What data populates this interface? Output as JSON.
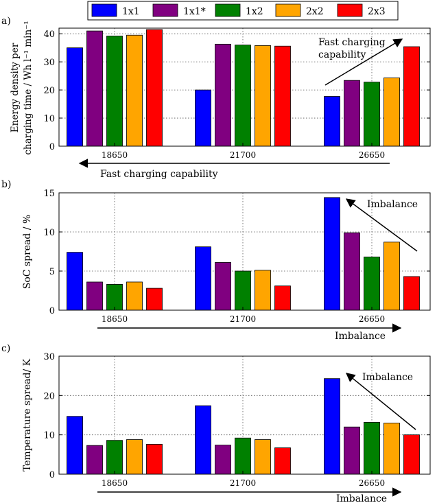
{
  "legend": {
    "entries": [
      {
        "name": "1x1",
        "color": "#0000ff"
      },
      {
        "name": "1x1*",
        "color": "#800080"
      },
      {
        "name": "1x2",
        "color": "#008000"
      },
      {
        "name": "2x2",
        "color": "#ffa500"
      },
      {
        "name": "2x3",
        "color": "#ff0000"
      }
    ],
    "placement": "top-center"
  },
  "chart_data": [
    {
      "type": "bar",
      "panel_label": "a)",
      "ylabel_line1": "Energy density per",
      "ylabel_line2": "charging time / Wh l⁻¹ min⁻¹",
      "categories": [
        "18650",
        "21700",
        "26650"
      ],
      "ylim": [
        0,
        42
      ],
      "yticks": [
        0,
        10,
        20,
        30,
        40
      ],
      "grid": true,
      "series": [
        {
          "name": "1x1",
          "values": [
            35.0,
            20.0,
            17.7
          ]
        },
        {
          "name": "1x1*",
          "values": [
            41.0,
            36.3,
            23.4
          ]
        },
        {
          "name": "1x2",
          "values": [
            39.2,
            36.0,
            22.8
          ]
        },
        {
          "name": "2x2",
          "values": [
            39.5,
            35.8,
            24.3
          ]
        },
        {
          "name": "2x3",
          "values": [
            41.5,
            35.6,
            35.4
          ]
        }
      ],
      "annotation": "Fast charging capability",
      "annotation_line1": "Fast charging",
      "annotation_line2": "capability",
      "below_axis_label": "Fast charging capability"
    },
    {
      "type": "bar",
      "panel_label": "b)",
      "ylabel": "SoC spread / %",
      "categories": [
        "18650",
        "21700",
        "26650"
      ],
      "ylim": [
        0,
        15
      ],
      "yticks": [
        0,
        5,
        10,
        15
      ],
      "grid": true,
      "series": [
        {
          "name": "1x1",
          "values": [
            7.4,
            8.1,
            14.4
          ]
        },
        {
          "name": "1x1*",
          "values": [
            3.6,
            6.1,
            9.9
          ]
        },
        {
          "name": "1x2",
          "values": [
            3.3,
            5.0,
            6.8
          ]
        },
        {
          "name": "2x2",
          "values": [
            3.6,
            5.1,
            8.7
          ]
        },
        {
          "name": "2x3",
          "values": [
            2.8,
            3.1,
            4.3
          ]
        }
      ],
      "annotation": "Imbalance",
      "below_axis_label": "Imbalance"
    },
    {
      "type": "bar",
      "panel_label": "c)",
      "ylabel": "Temperature spread/ K",
      "categories": [
        "18650",
        "21700",
        "26650"
      ],
      "ylim": [
        0,
        30
      ],
      "yticks": [
        0,
        10,
        20,
        30
      ],
      "grid": true,
      "series": [
        {
          "name": "1x1",
          "values": [
            14.7,
            17.4,
            24.3
          ]
        },
        {
          "name": "1x1*",
          "values": [
            7.3,
            7.4,
            12.0
          ]
        },
        {
          "name": "1x2",
          "values": [
            8.6,
            9.2,
            13.2
          ]
        },
        {
          "name": "2x2",
          "values": [
            8.8,
            8.8,
            13.0
          ]
        },
        {
          "name": "2x3",
          "values": [
            7.6,
            6.7,
            10.0
          ]
        }
      ],
      "annotation": "Imbalance",
      "below_axis_label": "Imbalance"
    }
  ]
}
